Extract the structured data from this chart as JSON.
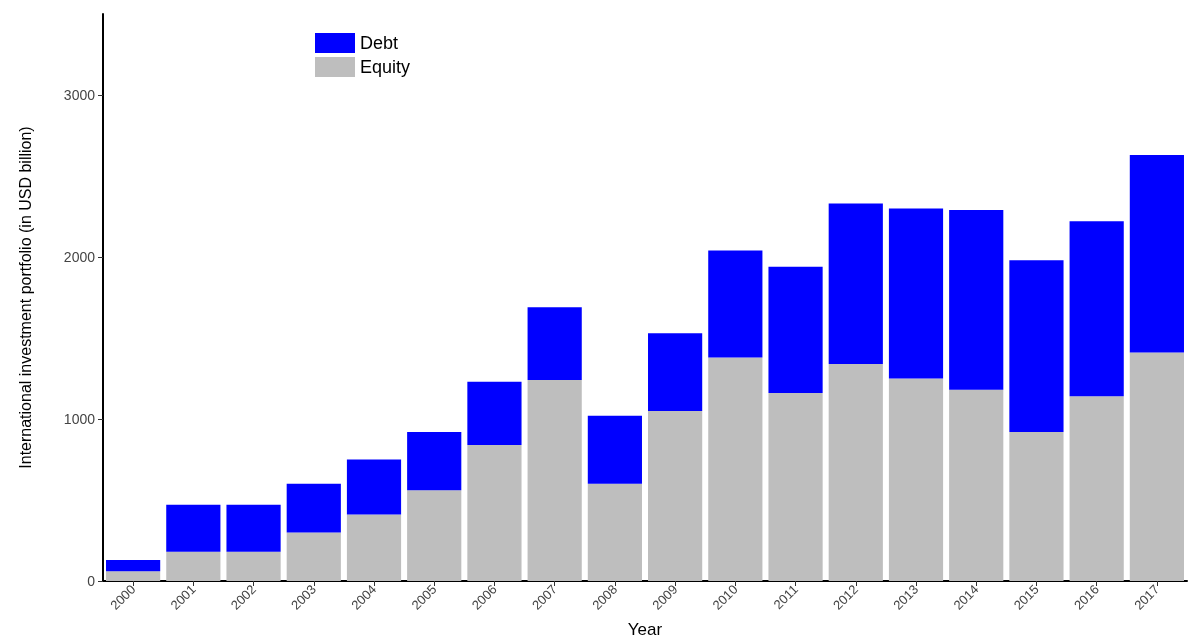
{
  "chart_data": {
    "type": "bar",
    "stacked": true,
    "xlabel": "Year",
    "ylabel": "International investment portfolio (in USD billion)",
    "categories": [
      "2000",
      "2001",
      "2002",
      "2003",
      "2004",
      "2005",
      "2006",
      "2007",
      "2008",
      "2009",
      "2010",
      "2011",
      "2012",
      "2013",
      "2014",
      "2015",
      "2016",
      "2017"
    ],
    "series": [
      {
        "name": "Equity",
        "color": "#bebebe",
        "values": [
          60,
          180,
          180,
          300,
          410,
          560,
          840,
          1240,
          600,
          1050,
          1380,
          1160,
          1340,
          1250,
          1180,
          920,
          1140,
          1410
        ]
      },
      {
        "name": "Debt",
        "color": "#0000ff",
        "values": [
          70,
          290,
          290,
          300,
          340,
          360,
          390,
          450,
          420,
          480,
          660,
          780,
          990,
          1050,
          1110,
          1060,
          1080,
          1220
        ]
      }
    ],
    "ylim": [
      0,
      3500
    ],
    "yticks": [
      0,
      1000,
      2000,
      3000
    ],
    "grid": false,
    "legend": "top left"
  }
}
